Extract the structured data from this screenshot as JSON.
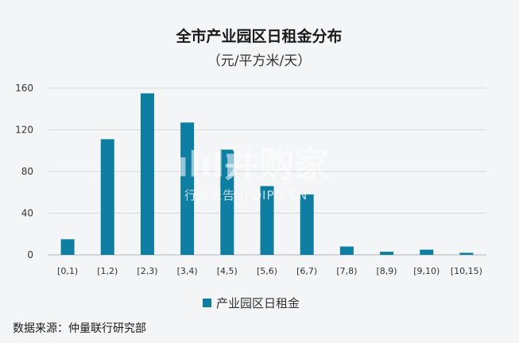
{
  "chart_data": {
    "type": "bar",
    "title": "全市产业园区日租金分布",
    "subtitle": "（元/平方米/天）",
    "categories": [
      "[0,1)",
      "[1,2)",
      "[2,3)",
      "[3,4)",
      "[4,5)",
      "[5,6)",
      "[6,7)",
      "[7,8)",
      "[8,9)",
      "[9,10)",
      "[10,15)"
    ],
    "series": [
      {
        "name": "产业园区日租金",
        "values": [
          15,
          111,
          155,
          127,
          101,
          66,
          58,
          8,
          3,
          5,
          2
        ]
      }
    ],
    "ylim": [
      0,
      160
    ],
    "yticks": [
      0,
      40,
      80,
      120,
      160
    ],
    "grid": true,
    "legend_position": "bottom",
    "bar_color": "#0e7ea2"
  },
  "source_text": "数据来源：仲量联行研究部",
  "watermark": {
    "logo_text": "并购家",
    "tagline": "行业报告 IPOIPO.CN"
  }
}
